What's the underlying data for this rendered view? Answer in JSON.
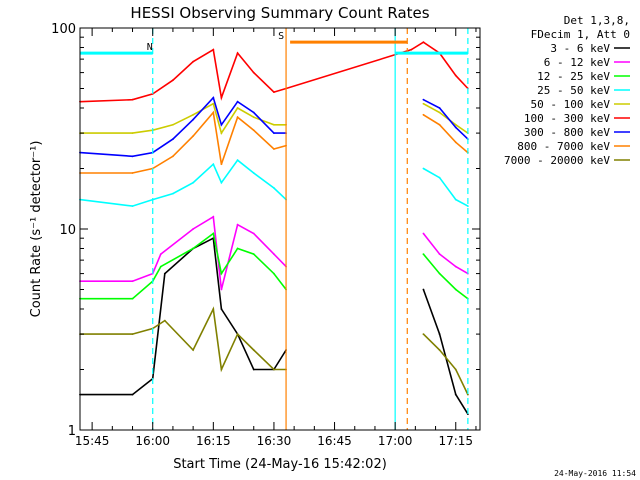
{
  "chart_data": {
    "type": "line",
    "title": "HESSI Observing Summary Count Rates",
    "xlabel": "Start Time (24-May-16 15:42:02)",
    "ylabel": "Count Rate (s⁻¹ detector⁻¹)",
    "y_scale": "log",
    "ylim": [
      1,
      100
    ],
    "xlim": [
      "15:42",
      "17:21"
    ],
    "x_ticks": [
      "15:45",
      "16:00",
      "16:15",
      "16:30",
      "16:45",
      "17:00",
      "17:15"
    ],
    "y_ticks": [
      "1",
      "10",
      "100"
    ],
    "legend_header": [
      "Det 1,3,8,",
      "FDecim 1, Att 0"
    ],
    "legend_position": "top-right",
    "series": [
      {
        "name": "3 - 6 keV",
        "color": "#000000",
        "points": [
          [
            "15:42",
            1.5
          ],
          [
            "15:55",
            1.5
          ],
          [
            "16:00",
            1.8
          ],
          [
            "16:03",
            6
          ],
          [
            "16:10",
            8
          ],
          [
            "16:15",
            9
          ],
          [
            "16:17",
            4
          ],
          [
            "16:21",
            3
          ],
          [
            "16:25",
            2
          ],
          [
            "16:30",
            2
          ],
          [
            "16:33",
            2.5
          ],
          [
            "17:07",
            5
          ],
          [
            "17:11",
            3
          ],
          [
            "17:15",
            1.5
          ],
          [
            "17:18",
            1.2
          ]
        ]
      },
      {
        "name": "6 - 12 keV",
        "color": "#ff00ff",
        "points": [
          [
            "15:42",
            5.5
          ],
          [
            "15:55",
            5.5
          ],
          [
            "16:00",
            6
          ],
          [
            "16:02",
            7.5
          ],
          [
            "16:10",
            10
          ],
          [
            "16:15",
            11.5
          ],
          [
            "16:17",
            5
          ],
          [
            "16:21",
            10.5
          ],
          [
            "16:25",
            9.5
          ],
          [
            "16:30",
            7.5
          ],
          [
            "16:33",
            6.5
          ],
          [
            "17:07",
            9.5
          ],
          [
            "17:11",
            7.5
          ],
          [
            "17:15",
            6.5
          ],
          [
            "17:18",
            6
          ]
        ]
      },
      {
        "name": "12 - 25 keV",
        "color": "#00ff00",
        "points": [
          [
            "15:42",
            4.5
          ],
          [
            "15:55",
            4.5
          ],
          [
            "16:00",
            5.5
          ],
          [
            "16:02",
            6.5
          ],
          [
            "16:10",
            8
          ],
          [
            "16:15",
            9.5
          ],
          [
            "16:17",
            6
          ],
          [
            "16:21",
            8
          ],
          [
            "16:25",
            7.5
          ],
          [
            "16:30",
            6
          ],
          [
            "16:33",
            5
          ],
          [
            "17:07",
            7.5
          ],
          [
            "17:11",
            6
          ],
          [
            "17:15",
            5
          ],
          [
            "17:18",
            4.5
          ]
        ]
      },
      {
        "name": "25 - 50 keV",
        "color": "#00ffff",
        "points": [
          [
            "15:42",
            14
          ],
          [
            "15:55",
            13
          ],
          [
            "16:00",
            14
          ],
          [
            "16:05",
            15
          ],
          [
            "16:10",
            17
          ],
          [
            "16:15",
            21
          ],
          [
            "16:17",
            17
          ],
          [
            "16:21",
            22
          ],
          [
            "16:25",
            19
          ],
          [
            "16:30",
            16
          ],
          [
            "16:33",
            14
          ],
          [
            "17:07",
            20
          ],
          [
            "17:11",
            18
          ],
          [
            "17:15",
            14
          ],
          [
            "17:18",
            13
          ]
        ]
      },
      {
        "name": "50 - 100 keV",
        "color": "#cccc00",
        "points": [
          [
            "15:42",
            30
          ],
          [
            "15:55",
            30
          ],
          [
            "16:00",
            31
          ],
          [
            "16:05",
            33
          ],
          [
            "16:10",
            37
          ],
          [
            "16:15",
            42
          ],
          [
            "16:17",
            30
          ],
          [
            "16:21",
            40
          ],
          [
            "16:25",
            36
          ],
          [
            "16:30",
            33
          ],
          [
            "16:33",
            33
          ],
          [
            "17:07",
            42
          ],
          [
            "17:11",
            38
          ],
          [
            "17:15",
            33
          ],
          [
            "17:18",
            30
          ]
        ]
      },
      {
        "name": "100 - 300 keV",
        "color": "#ff0000",
        "points": [
          [
            "15:42",
            43
          ],
          [
            "15:55",
            44
          ],
          [
            "16:00",
            47
          ],
          [
            "16:05",
            55
          ],
          [
            "16:10",
            68
          ],
          [
            "16:15",
            78
          ],
          [
            "16:17",
            45
          ],
          [
            "16:21",
            75
          ],
          [
            "16:25",
            60
          ],
          [
            "16:30",
            48
          ],
          [
            "16:33",
            50
          ],
          [
            "17:04",
            78
          ],
          [
            "17:07",
            85
          ],
          [
            "17:11",
            75
          ],
          [
            "17:15",
            58
          ],
          [
            "17:18",
            50
          ]
        ]
      },
      {
        "name": "300 - 800 keV",
        "color": "#0000ff",
        "points": [
          [
            "15:42",
            24
          ],
          [
            "15:55",
            23
          ],
          [
            "16:00",
            24
          ],
          [
            "16:05",
            28
          ],
          [
            "16:10",
            35
          ],
          [
            "16:15",
            45
          ],
          [
            "16:17",
            33
          ],
          [
            "16:21",
            43
          ],
          [
            "16:25",
            38
          ],
          [
            "16:30",
            30
          ],
          [
            "16:33",
            30
          ],
          [
            "17:07",
            44
          ],
          [
            "17:11",
            40
          ],
          [
            "17:15",
            32
          ],
          [
            "17:18",
            28
          ]
        ]
      },
      {
        "name": "800 - 7000 keV",
        "color": "#ff8000",
        "points": [
          [
            "15:42",
            19
          ],
          [
            "15:55",
            19
          ],
          [
            "16:00",
            20
          ],
          [
            "16:05",
            23
          ],
          [
            "16:10",
            29
          ],
          [
            "16:15",
            38
          ],
          [
            "16:17",
            21
          ],
          [
            "16:21",
            36
          ],
          [
            "16:25",
            31
          ],
          [
            "16:30",
            25
          ],
          [
            "16:33",
            26
          ],
          [
            "17:07",
            37
          ],
          [
            "17:11",
            33
          ],
          [
            "17:15",
            27
          ],
          [
            "17:18",
            24
          ]
        ]
      },
      {
        "name": "7000 - 20000 keV",
        "color": "#808000",
        "points": [
          [
            "15:42",
            3
          ],
          [
            "15:55",
            3
          ],
          [
            "16:00",
            3.2
          ],
          [
            "16:03",
            3.5
          ],
          [
            "16:10",
            2.5
          ],
          [
            "16:15",
            4
          ],
          [
            "16:17",
            2
          ],
          [
            "16:21",
            3
          ],
          [
            "16:25",
            2.5
          ],
          [
            "16:30",
            2
          ],
          [
            "16:33",
            2
          ],
          [
            "17:07",
            3
          ],
          [
            "17:11",
            2.5
          ],
          [
            "17:15",
            2
          ],
          [
            "17:18",
            1.5
          ]
        ]
      }
    ],
    "annotations": [
      {
        "label": "N",
        "color": "#00ffff",
        "level": 75,
        "from": "15:42",
        "to": "16:00"
      },
      {
        "label": "S",
        "color": "#ff8000",
        "level": 85,
        "from": "16:34",
        "to": "17:03"
      },
      {
        "label": "",
        "color": "#00ffff",
        "level": 75,
        "from": "17:00",
        "to": "17:18"
      }
    ],
    "vertical_markers": [
      {
        "time": "16:00",
        "color": "#00ffff",
        "style": "dashed"
      },
      {
        "time": "16:33",
        "color": "#ff8000",
        "style": "solid"
      },
      {
        "time": "17:00",
        "color": "#00ffff",
        "style": "solid"
      },
      {
        "time": "17:03",
        "color": "#ff8000",
        "style": "dashed"
      },
      {
        "time": "17:18",
        "color": "#00ffff",
        "style": "dashed"
      }
    ],
    "gaps": [
      [
        "16:33",
        "17:05"
      ]
    ]
  },
  "footer_timestamp": "24-May-2016 11:54"
}
